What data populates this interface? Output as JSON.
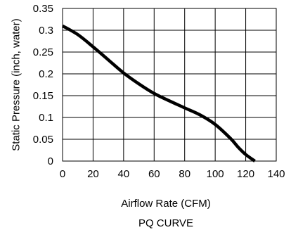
{
  "chart_data": {
    "type": "line",
    "title": "PQ CURVE",
    "xlabel": "Airflow Rate (CFM)",
    "ylabel": "Static Pressure (inch, water)",
    "xlim": [
      0,
      140
    ],
    "ylim": [
      0,
      0.35
    ],
    "x_ticks": [
      "0",
      "20",
      "40",
      "60",
      "80",
      "100",
      "120",
      "140"
    ],
    "y_ticks": [
      "0",
      "0.05",
      "0.1",
      "0.15",
      "0.2",
      "0.25",
      "0.3",
      "0.35"
    ],
    "grid": true,
    "series": [
      {
        "color": "#000000",
        "x": [
          0,
          10,
          20,
          30,
          40,
          50,
          60,
          70,
          80,
          90,
          100,
          110,
          115,
          120,
          126
        ],
        "y": [
          0.31,
          0.29,
          0.262,
          0.232,
          0.202,
          0.177,
          0.155,
          0.138,
          0.122,
          0.106,
          0.084,
          0.052,
          0.032,
          0.015,
          0.0
        ]
      }
    ]
  }
}
